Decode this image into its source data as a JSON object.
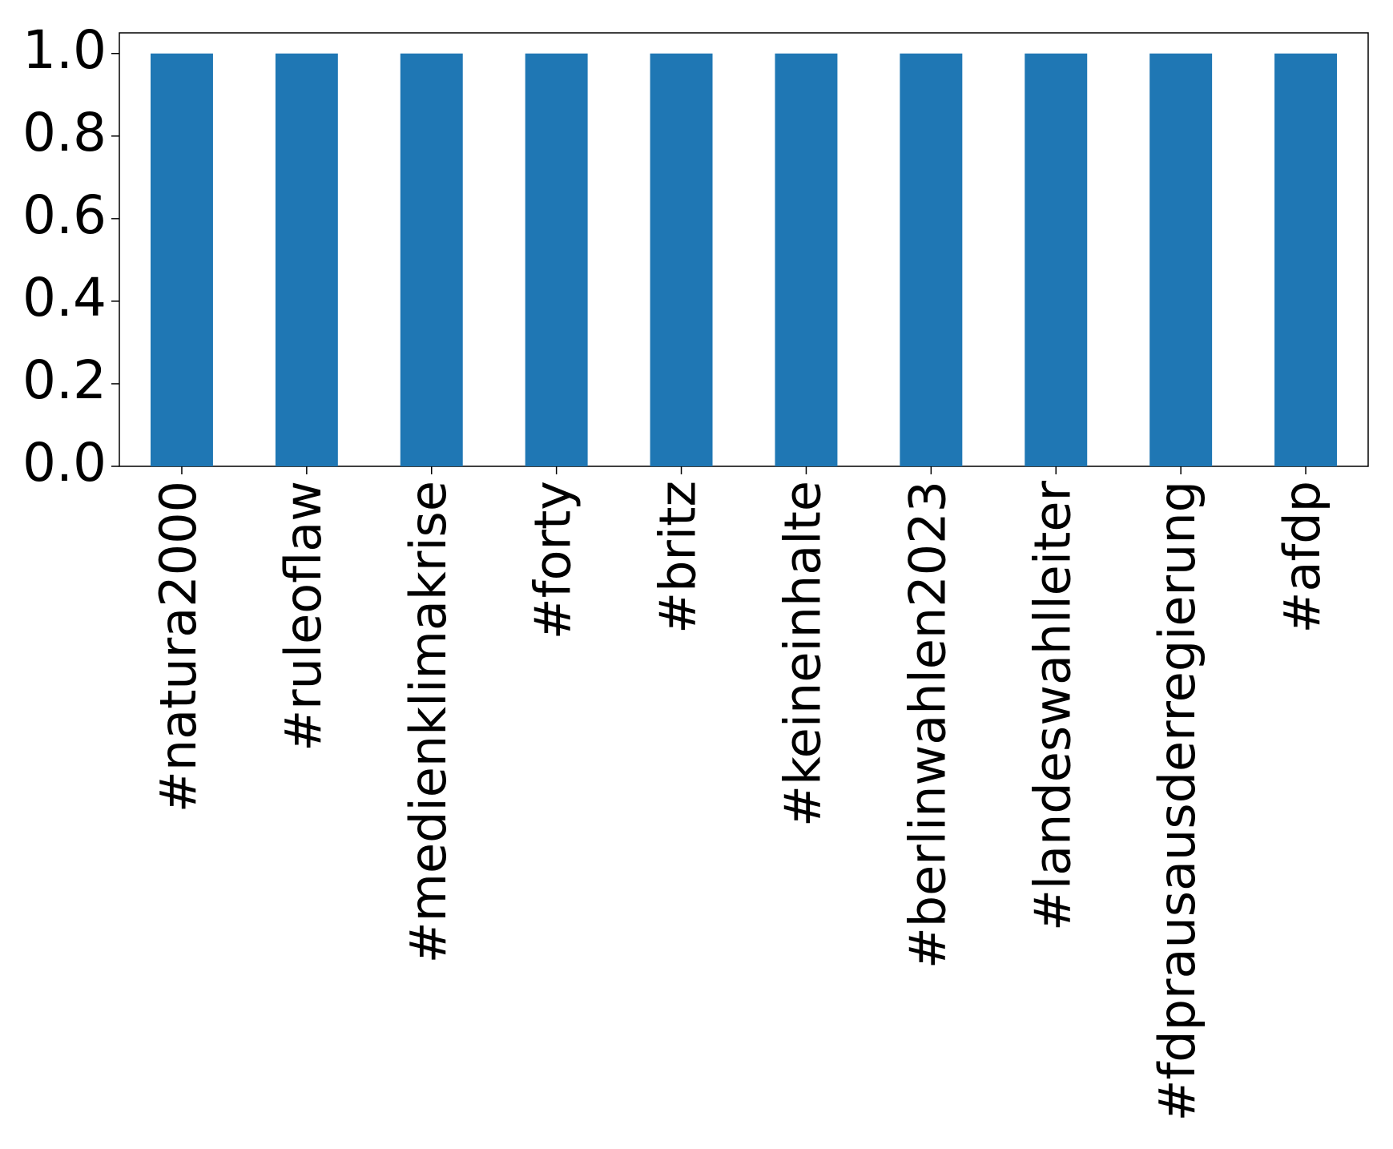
{
  "chart_data": {
    "type": "bar",
    "categories": [
      "#natura2000",
      "#ruleoflaw",
      "#medienklimakrise",
      "#forty",
      "#britz",
      "#keineinhalte",
      "#berlinwahlen2023",
      "#landeswahlleiter",
      "#fdprausausderregierung",
      "#afdp"
    ],
    "values": [
      1,
      1,
      1,
      1,
      1,
      1,
      1,
      1,
      1,
      1
    ],
    "color": "#1f77b4",
    "ylim": [
      0,
      1.05
    ],
    "yticks": [
      {
        "value": 0,
        "label": "0.0"
      },
      0.2,
      0.4,
      0.6,
      0.8,
      {
        "value": 1,
        "label": "1.0"
      }
    ],
    "grid": false
  }
}
